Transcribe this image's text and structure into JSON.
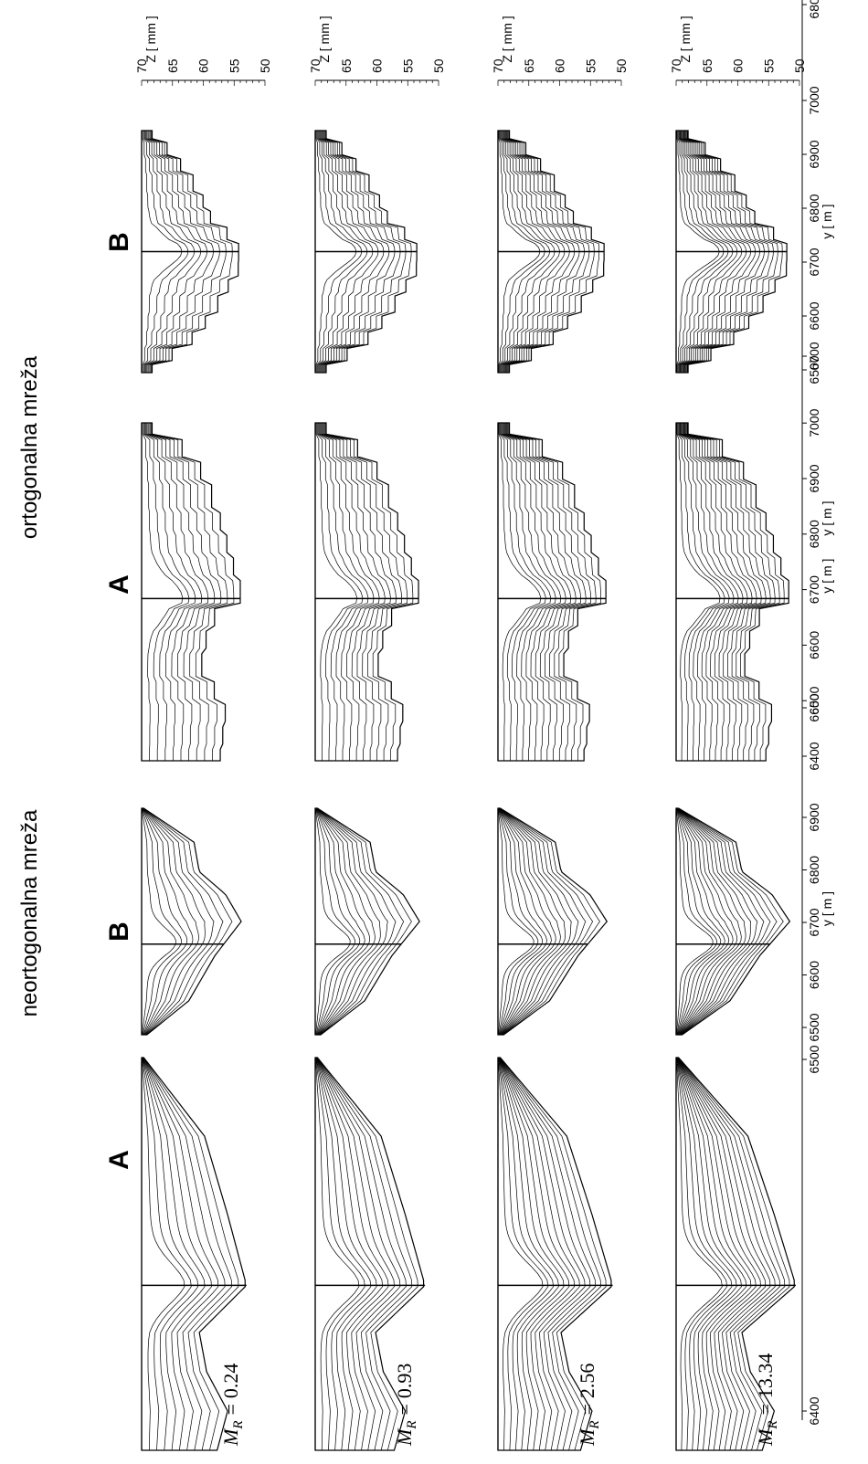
{
  "titles": [
    "neortogonalna mreža",
    "ortogonalna mreža"
  ],
  "panel_labels": [
    "A",
    "B",
    "A",
    "B"
  ],
  "rows": [
    {
      "symbol": "M",
      "subscript": "R",
      "relation": "=",
      "value": 0.24
    },
    {
      "symbol": "M",
      "subscript": "R",
      "relation": "=",
      "value": 0.93
    },
    {
      "symbol": "M",
      "subscript": "R",
      "relation": "=",
      "value": 2.56
    },
    {
      "symbol": "M",
      "subscript": "R",
      "relation": "=",
      "value": 13.34
    }
  ],
  "y_axes": [
    {
      "label": "y [ m ]",
      "ticks": [
        6400,
        6500,
        6600,
        6700,
        6800,
        6900
      ]
    },
    {
      "label": "y [ m ]",
      "ticks": [
        6500,
        6600,
        6700,
        6800,
        6900
      ]
    },
    {
      "label": "y [ m ]",
      "ticks": [
        6400,
        6500,
        6600,
        6700,
        6800,
        6900,
        7000
      ]
    },
    {
      "label": "y [ m ]",
      "ticks": [
        6500,
        6600,
        6700,
        6800,
        6900,
        7000
      ]
    }
  ],
  "z_axis": {
    "label": "Z [ mm ]",
    "ticks": [
      70,
      65,
      60,
      55,
      50
    ]
  }
}
